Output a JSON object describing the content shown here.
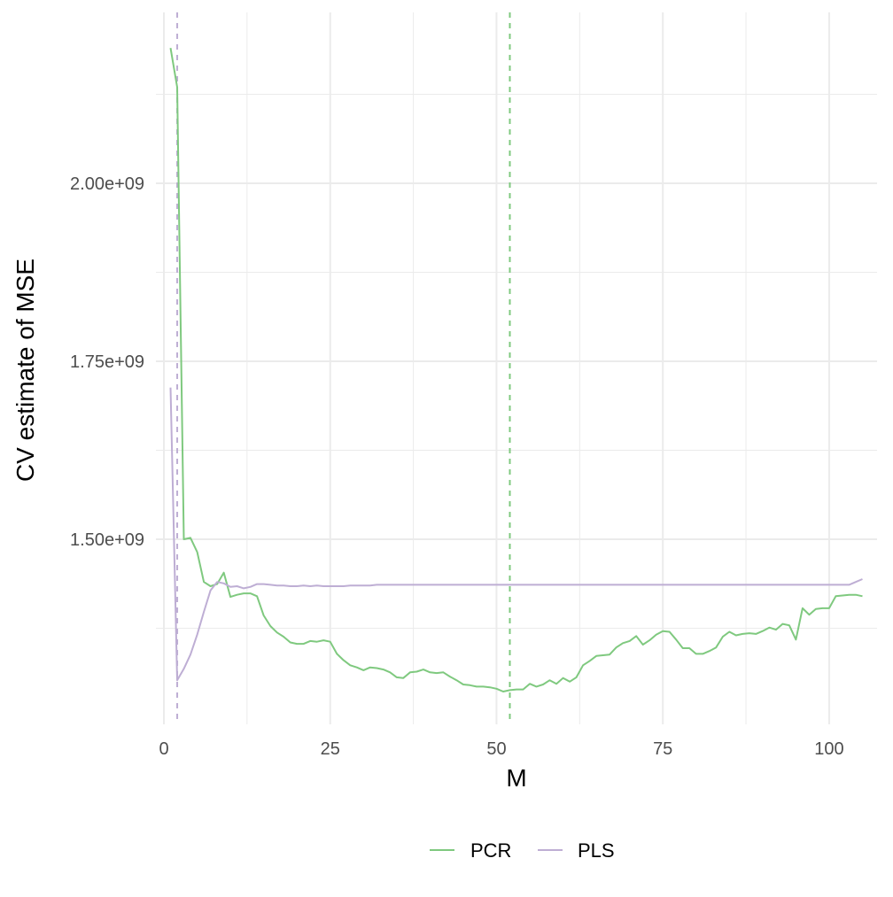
{
  "chart_data": {
    "type": "line",
    "title": "",
    "xlabel": "M",
    "ylabel": "CV estimate of MSE",
    "xlim": [
      -1.2,
      107.2
    ],
    "ylim": [
      1240000000,
      2240000000
    ],
    "x_ticks": [
      0,
      25,
      50,
      75,
      100
    ],
    "x_tick_labels": [
      "0",
      "25",
      "50",
      "75",
      "100"
    ],
    "y_ticks": [
      1500000000,
      1750000000,
      2000000000
    ],
    "y_tick_labels": [
      "1.50e+09",
      "1.75e+09",
      "2.00e+09"
    ],
    "grid": true,
    "legend_position": "bottom",
    "series": [
      {
        "name": "PCR",
        "color": "#7fc97f",
        "x": [
          1,
          2,
          3,
          4,
          5,
          6,
          7,
          8,
          9,
          10,
          11,
          12,
          13,
          14,
          15,
          16,
          17,
          18,
          19,
          20,
          21,
          22,
          23,
          24,
          25,
          26,
          27,
          28,
          29,
          30,
          31,
          32,
          33,
          34,
          35,
          36,
          37,
          38,
          39,
          40,
          41,
          42,
          43,
          44,
          45,
          46,
          47,
          48,
          49,
          50,
          51,
          52,
          53,
          54,
          55,
          56,
          57,
          58,
          59,
          60,
          61,
          62,
          63,
          64,
          65,
          66,
          67,
          68,
          69,
          70,
          71,
          72,
          73,
          74,
          75,
          76,
          77,
          78,
          79,
          80,
          81,
          82,
          83,
          84,
          85,
          86,
          87,
          88,
          89,
          90,
          91,
          92,
          93,
          94,
          95,
          96,
          97,
          98,
          99,
          100,
          101,
          102,
          103,
          104,
          105
        ],
        "y": [
          2190000000,
          2135000000,
          1500000000,
          1502000000,
          1482000000,
          1440000000,
          1434000000,
          1437000000,
          1453000000,
          1419000000,
          1422000000,
          1424000000,
          1424000000,
          1420000000,
          1393000000,
          1378000000,
          1369000000,
          1363000000,
          1355000000,
          1353000000,
          1353000000,
          1357000000,
          1356000000,
          1358000000,
          1356000000,
          1339000000,
          1330000000,
          1323000000,
          1320000000,
          1316000000,
          1320000000,
          1319000000,
          1317000000,
          1313000000,
          1306000000,
          1305000000,
          1313000000,
          1314000000,
          1317000000,
          1313000000,
          1312000000,
          1313000000,
          1307000000,
          1302000000,
          1296000000,
          1295000000,
          1293000000,
          1293000000,
          1292000000,
          1290000000,
          1286000000,
          1288000000,
          1289000000,
          1289000000,
          1297000000,
          1293000000,
          1296000000,
          1302000000,
          1297000000,
          1305000000,
          1300000000,
          1306000000,
          1323000000,
          1329000000,
          1336000000,
          1337000000,
          1338000000,
          1348000000,
          1354000000,
          1357000000,
          1364000000,
          1352000000,
          1358000000,
          1366000000,
          1371000000,
          1370000000,
          1359000000,
          1347000000,
          1347000000,
          1339000000,
          1339000000,
          1343000000,
          1348000000,
          1363000000,
          1370000000,
          1365000000,
          1367000000,
          1368000000,
          1367000000,
          1371000000,
          1376000000,
          1373000000,
          1381000000,
          1379000000,
          1359000000,
          1403000000,
          1394000000,
          1402000000,
          1403000000,
          1403000000,
          1420000000,
          1421000000,
          1422000000,
          1422000000,
          1420000000
        ]
      },
      {
        "name": "PLS",
        "color": "#beaed4",
        "x": [
          1,
          2,
          3,
          4,
          5,
          6,
          7,
          8,
          9,
          10,
          11,
          12,
          13,
          14,
          15,
          16,
          17,
          18,
          19,
          20,
          21,
          22,
          23,
          24,
          25,
          26,
          27,
          28,
          29,
          30,
          31,
          32,
          33,
          34,
          35,
          36,
          37,
          38,
          39,
          40,
          41,
          42,
          43,
          44,
          45,
          46,
          47,
          48,
          49,
          50,
          51,
          52,
          53,
          54,
          55,
          56,
          57,
          58,
          59,
          60,
          61,
          62,
          63,
          64,
          65,
          66,
          67,
          68,
          69,
          70,
          71,
          72,
          73,
          74,
          75,
          76,
          77,
          78,
          79,
          80,
          81,
          82,
          83,
          84,
          85,
          86,
          87,
          88,
          89,
          90,
          91,
          92,
          93,
          94,
          95,
          96,
          97,
          98,
          99,
          100,
          101,
          102,
          103,
          104,
          105
        ],
        "y": [
          1713000000,
          1302000000,
          1318000000,
          1338000000,
          1366000000,
          1398000000,
          1428000000,
          1440000000,
          1438000000,
          1433000000,
          1434000000,
          1431000000,
          1433000000,
          1437000000,
          1437000000,
          1436000000,
          1435000000,
          1435000000,
          1434000000,
          1434000000,
          1435000000,
          1434000000,
          1435000000,
          1434000000,
          1434000000,
          1434000000,
          1434000000,
          1435000000,
          1435000000,
          1435000000,
          1435000000,
          1436000000,
          1436000000,
          1436000000,
          1436000000,
          1436000000,
          1436000000,
          1436000000,
          1436000000,
          1436000000,
          1436000000,
          1436000000,
          1436000000,
          1436000000,
          1436000000,
          1436000000,
          1436000000,
          1436000000,
          1436000000,
          1436000000,
          1436000000,
          1436000000,
          1436000000,
          1436000000,
          1436000000,
          1436000000,
          1436000000,
          1436000000,
          1436000000,
          1436000000,
          1436000000,
          1436000000,
          1436000000,
          1436000000,
          1436000000,
          1436000000,
          1436000000,
          1436000000,
          1436000000,
          1436000000,
          1436000000,
          1436000000,
          1436000000,
          1436000000,
          1436000000,
          1436000000,
          1436000000,
          1436000000,
          1436000000,
          1436000000,
          1436000000,
          1436000000,
          1436000000,
          1436000000,
          1436000000,
          1436000000,
          1436000000,
          1436000000,
          1436000000,
          1436000000,
          1436000000,
          1436000000,
          1436000000,
          1436000000,
          1436000000,
          1436000000,
          1436000000,
          1436000000,
          1436000000,
          1436000000,
          1436000000,
          1436000000,
          1436000000,
          1440000000,
          1444000000
        ]
      }
    ],
    "vlines": [
      {
        "x": 2,
        "color": "#beaed4",
        "style": "dashed"
      },
      {
        "x": 52,
        "color": "#7fc97f",
        "style": "dashed"
      }
    ]
  }
}
